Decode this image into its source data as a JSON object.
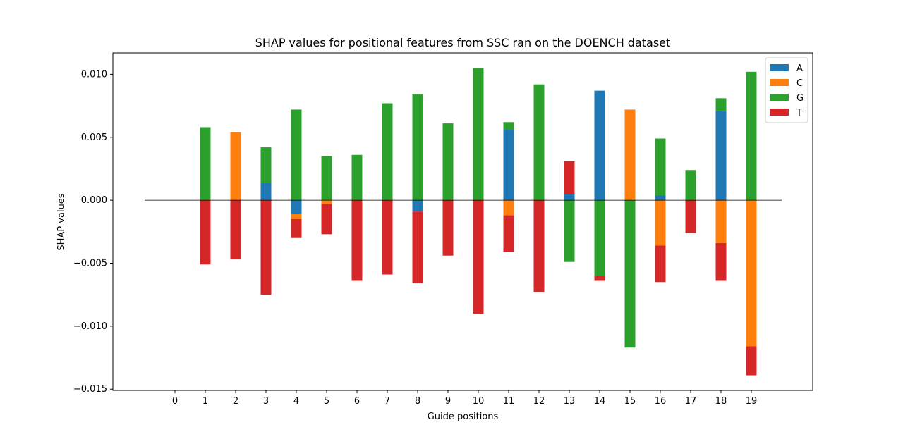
{
  "chart_data": {
    "type": "bar",
    "stacked": "diverging",
    "title": "SHAP values for positional features from SSC ran on the DOENCH dataset",
    "xlabel": "Guide positions",
    "ylabel": "SHAP values",
    "categories": [
      "0",
      "1",
      "2",
      "3",
      "4",
      "5",
      "6",
      "7",
      "8",
      "9",
      "10",
      "11",
      "12",
      "13",
      "14",
      "15",
      "16",
      "17",
      "18",
      "19"
    ],
    "ylim": [
      -0.0151,
      0.0117
    ],
    "yticks": [
      -0.015,
      -0.01,
      -0.005,
      0.0,
      0.005,
      0.01
    ],
    "ytick_labels": [
      "−0.015",
      "−0.010",
      "−0.005",
      "0.000",
      "0.005",
      "0.010"
    ],
    "grid": false,
    "legend_position": "top-right",
    "zero_line": true,
    "series": [
      {
        "name": "A",
        "color": "#1f77b4",
        "values": [
          0,
          0,
          0,
          0.0014,
          -0.0011,
          0,
          0,
          0,
          -0.0009,
          0,
          0,
          0.0056,
          0,
          0.0005,
          0.0087,
          0,
          0.0004,
          0,
          0.0071,
          0
        ]
      },
      {
        "name": "C",
        "color": "#ff7f0e",
        "values": [
          0,
          0,
          0.0054,
          0,
          -0.0004,
          -0.0003,
          0,
          0,
          0,
          0,
          0,
          -0.0012,
          0,
          0,
          0,
          0.0072,
          -0.0036,
          0,
          -0.0034,
          -0.0116
        ]
      },
      {
        "name": "G",
        "color": "#2ca02c",
        "values": [
          0,
          0.0058,
          0,
          0.0028,
          0.0072,
          0.0035,
          0.0036,
          0.0077,
          0.0084,
          0.0061,
          0.0105,
          0.0006,
          0.0092,
          -0.0049,
          -0.006,
          -0.0117,
          0.0045,
          0.0024,
          0.001,
          0.0102
        ]
      },
      {
        "name": "T",
        "color": "#d62728",
        "values": [
          0,
          -0.0051,
          -0.0047,
          -0.0075,
          -0.0015,
          -0.0024,
          -0.0064,
          -0.0059,
          -0.0057,
          -0.0044,
          -0.009,
          -0.0029,
          -0.0073,
          0.0026,
          -0.0004,
          0,
          -0.0029,
          -0.0026,
          -0.003,
          -0.0023
        ]
      }
    ]
  }
}
